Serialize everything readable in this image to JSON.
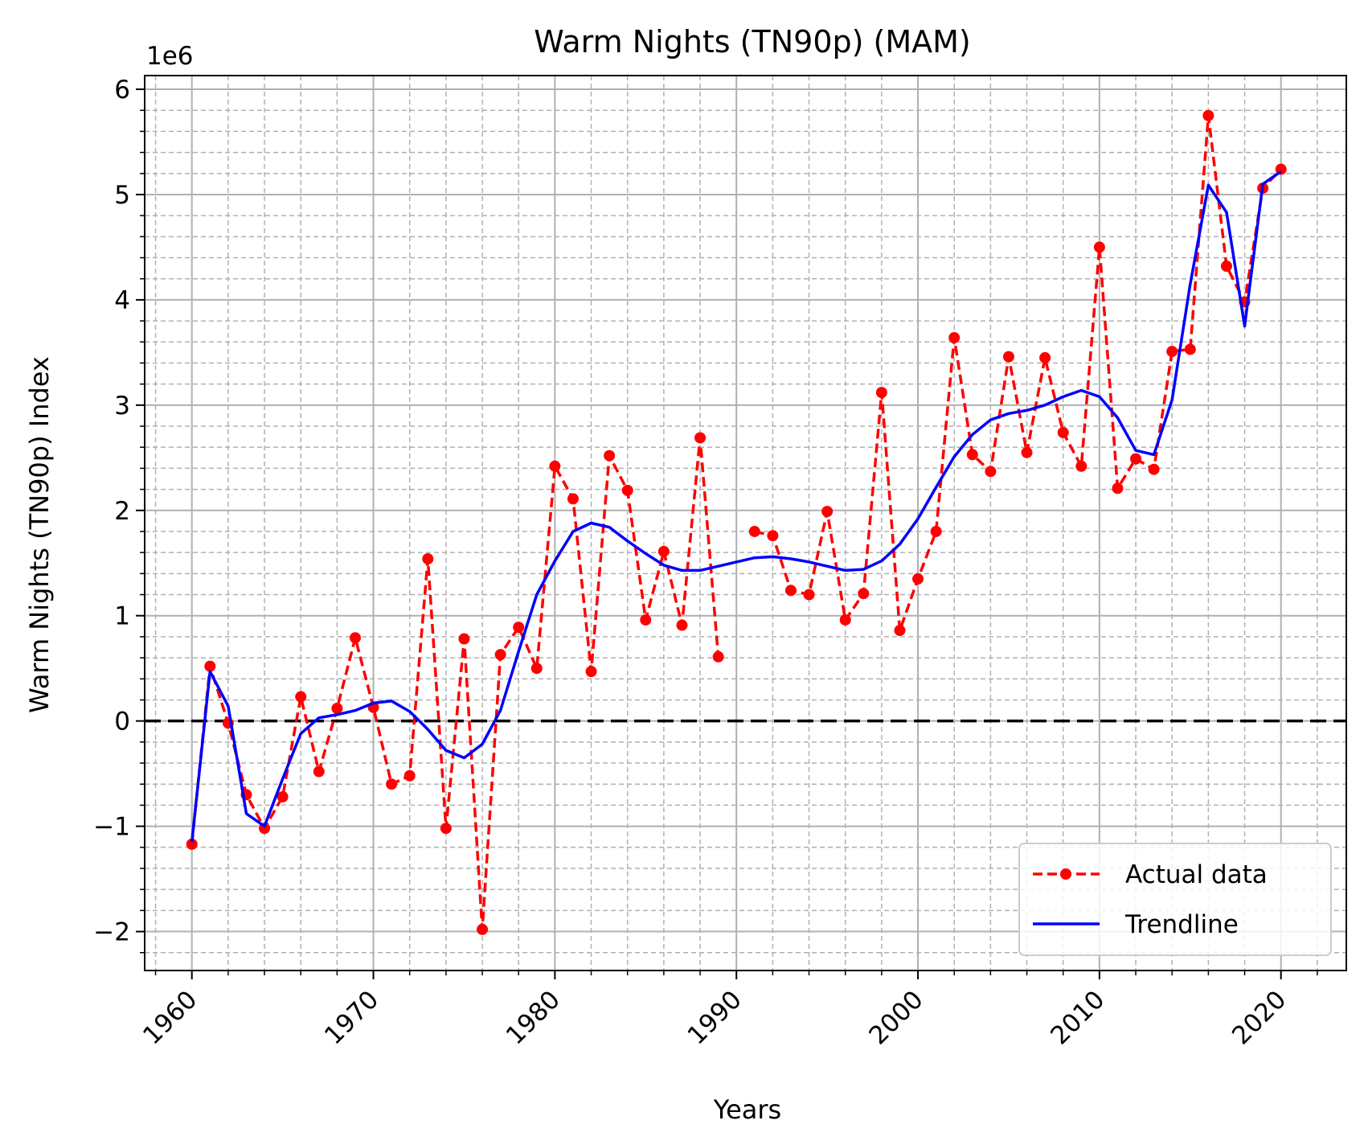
{
  "chart_data": {
    "type": "line",
    "title": "Warm Nights (TN90p) (MAM)",
    "xlabel": "Years",
    "ylabel": "Warm Nights (TN90p) Index",
    "y_offset_label": "1e6",
    "xlim": [
      1957.4,
      2023.6
    ],
    "ylim": [
      -2.37,
      6.13
    ],
    "x_ticks": [
      1960,
      1970,
      1980,
      1990,
      2000,
      2010,
      2020
    ],
    "y_ticks": [
      -2,
      -1,
      0,
      1,
      2,
      3,
      4,
      5,
      6
    ],
    "y_tick_labels": [
      "−2",
      "−1",
      "0",
      "1",
      "2",
      "3",
      "4",
      "5",
      "6"
    ],
    "grid": "major and minor",
    "legend_position": "lower right",
    "reference_line": 0,
    "x": [
      1960,
      1961,
      1962,
      1963,
      1964,
      1965,
      1966,
      1967,
      1968,
      1969,
      1970,
      1971,
      1972,
      1973,
      1974,
      1975,
      1976,
      1977,
      1978,
      1979,
      1980,
      1981,
      1982,
      1983,
      1984,
      1985,
      1986,
      1987,
      1988,
      1989,
      1990,
      1991,
      1992,
      1993,
      1994,
      1995,
      1996,
      1997,
      1998,
      1999,
      2000,
      2001,
      2002,
      2003,
      2004,
      2005,
      2006,
      2007,
      2008,
      2009,
      2010,
      2011,
      2012,
      2013,
      2014,
      2015,
      2016,
      2017,
      2018,
      2019,
      2020
    ],
    "series": [
      {
        "name": "Actual data",
        "style": "dashed-markers",
        "color": "#ff0000",
        "values": [
          -1.17,
          0.52,
          -0.02,
          -0.7,
          -1.02,
          -0.72,
          0.23,
          -0.48,
          0.12,
          0.79,
          0.13,
          -0.6,
          -0.52,
          1.54,
          -1.02,
          0.78,
          -1.98,
          0.63,
          0.89,
          0.5,
          2.42,
          2.11,
          0.47,
          2.52,
          2.19,
          0.96,
          1.61,
          0.91,
          2.69,
          0.61,
          null,
          1.8,
          1.76,
          1.24,
          1.2,
          1.99,
          0.96,
          1.21,
          3.12,
          0.86,
          1.35,
          1.8,
          3.64,
          2.53,
          2.37,
          3.46,
          2.55,
          3.45,
          2.74,
          2.42,
          4.5,
          2.21,
          2.49,
          2.39,
          3.51,
          3.53,
          5.75,
          4.32,
          3.98,
          5.06,
          5.24
        ]
      },
      {
        "name": "Trendline",
        "style": "solid",
        "color": "#0000ff",
        "values": [
          -1.15,
          0.47,
          0.14,
          -0.88,
          -1.0,
          -0.55,
          -0.12,
          0.03,
          0.06,
          0.1,
          0.17,
          0.19,
          0.09,
          -0.08,
          -0.28,
          -0.35,
          -0.22,
          0.1,
          0.66,
          1.2,
          1.52,
          1.8,
          1.88,
          1.84,
          1.71,
          1.59,
          1.48,
          1.43,
          1.43,
          1.47,
          1.51,
          1.55,
          1.56,
          1.54,
          1.51,
          1.47,
          1.43,
          1.44,
          1.52,
          1.68,
          1.92,
          2.22,
          2.51,
          2.72,
          2.86,
          2.92,
          2.95,
          3.0,
          3.08,
          3.14,
          3.08,
          2.88,
          2.57,
          2.53,
          3.05,
          4.15,
          5.09,
          4.83,
          3.75,
          5.1,
          5.22
        ]
      }
    ]
  }
}
